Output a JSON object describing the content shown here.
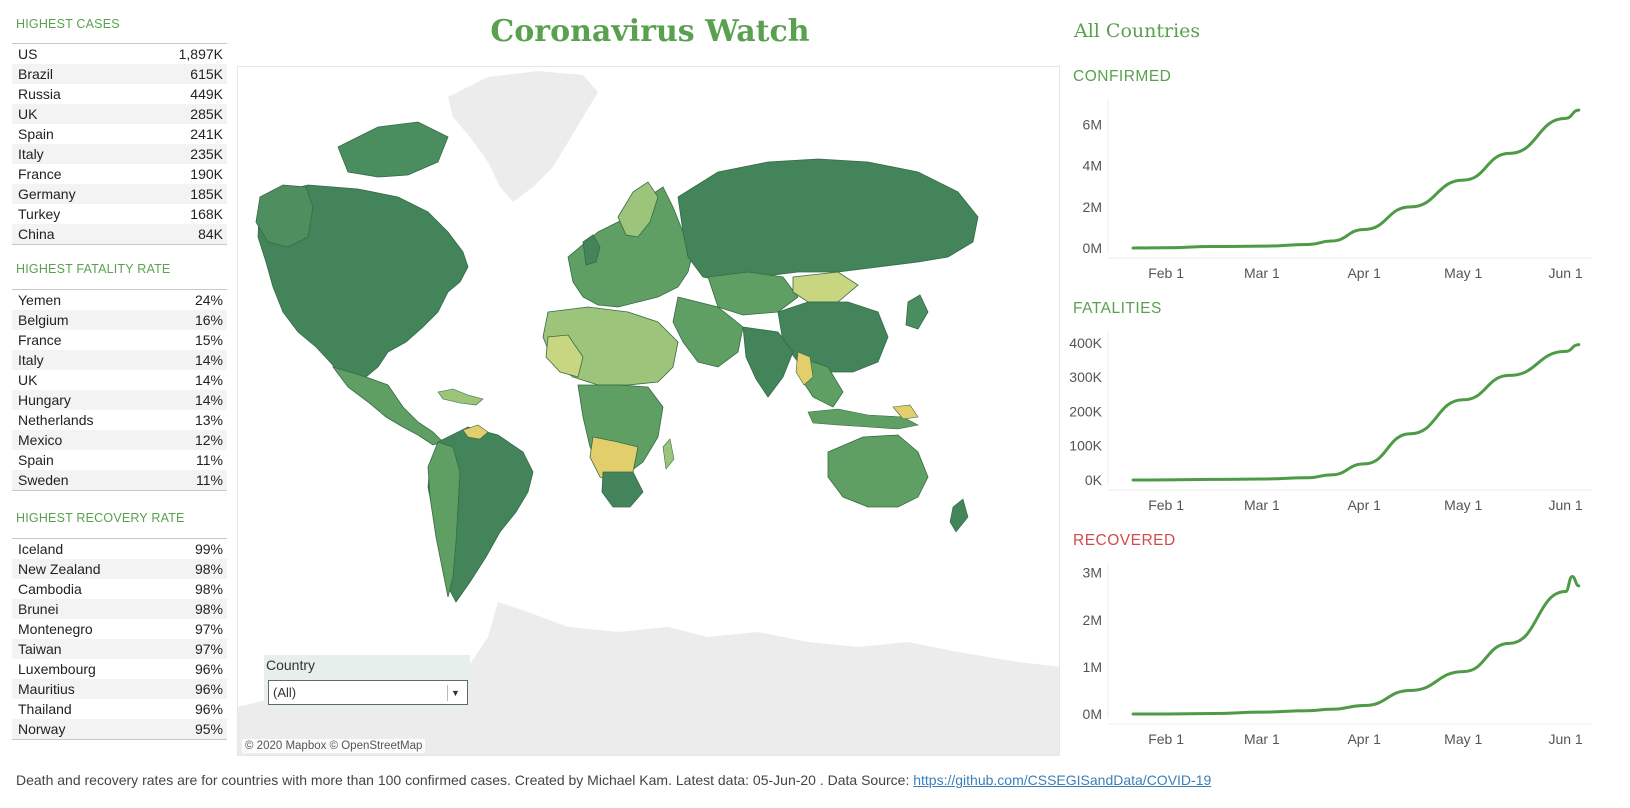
{
  "title": "Coronavirus Watch",
  "right_title": "All Countries",
  "highest_cases": {
    "header": "HIGHEST CASES",
    "rows": [
      {
        "name": "US",
        "value": "1,897K"
      },
      {
        "name": "Brazil",
        "value": "615K"
      },
      {
        "name": "Russia",
        "value": "449K"
      },
      {
        "name": "UK",
        "value": "285K"
      },
      {
        "name": "Spain",
        "value": "241K"
      },
      {
        "name": "Italy",
        "value": "235K"
      },
      {
        "name": "France",
        "value": "190K"
      },
      {
        "name": "Germany",
        "value": "185K"
      },
      {
        "name": "Turkey",
        "value": "168K"
      },
      {
        "name": "China",
        "value": "84K"
      }
    ]
  },
  "highest_fatality": {
    "header": "HIGHEST FATALITY RATE",
    "rows": [
      {
        "name": "Yemen",
        "value": "24%"
      },
      {
        "name": "Belgium",
        "value": "16%"
      },
      {
        "name": "France",
        "value": "15%"
      },
      {
        "name": "Italy",
        "value": "14%"
      },
      {
        "name": "UK",
        "value": "14%"
      },
      {
        "name": "Hungary",
        "value": "14%"
      },
      {
        "name": "Netherlands",
        "value": "13%"
      },
      {
        "name": "Mexico",
        "value": "12%"
      },
      {
        "name": "Spain",
        "value": "11%"
      },
      {
        "name": "Sweden",
        "value": "11%"
      }
    ]
  },
  "highest_recovery": {
    "header": "HIGHEST RECOVERY RATE",
    "rows": [
      {
        "name": "Iceland",
        "value": "99%"
      },
      {
        "name": "New Zealand",
        "value": "98%"
      },
      {
        "name": "Cambodia",
        "value": "98%"
      },
      {
        "name": "Brunei",
        "value": "98%"
      },
      {
        "name": "Montenegro",
        "value": "97%"
      },
      {
        "name": "Taiwan",
        "value": "97%"
      },
      {
        "name": "Luxembourg",
        "value": "96%"
      },
      {
        "name": "Mauritius",
        "value": "96%"
      },
      {
        "name": "Thailand",
        "value": "96%"
      },
      {
        "name": "Norway",
        "value": "95%"
      }
    ]
  },
  "map": {
    "attribution": "© 2020 Mapbox © OpenStreetMap",
    "filter_label": "Country",
    "filter_value": "(All)",
    "colors": {
      "dark": "#43845a",
      "mid": "#5f9f63",
      "light": "#9cc47a",
      "pale": "#c8d682",
      "yellow": "#e2cf6c",
      "land": "#ececec"
    }
  },
  "colors": {
    "accent": "#59a14f",
    "recovered_label": "#d14b4b",
    "line": "#4e9a47"
  },
  "charts": [
    {
      "label": "CONFIRMED",
      "label_color": "#59a14f",
      "chart_data": {
        "type": "line",
        "x": [
          "Jan 22",
          "Feb 1",
          "Feb 15",
          "Mar 1",
          "Mar 15",
          "Mar 22",
          "Apr 1",
          "Apr 15",
          "May 1",
          "May 15",
          "Jun 1",
          "Jun 5"
        ],
        "values": [
          0.0006,
          0.012,
          0.07,
          0.09,
          0.17,
          0.34,
          0.9,
          2.0,
          3.3,
          4.6,
          6.3,
          6.7
        ],
        "ylim": [
          0,
          7
        ],
        "y_ticks": [
          "0M",
          "2M",
          "4M",
          "6M"
        ],
        "y_tick_values": [
          0,
          2,
          4,
          6
        ],
        "x_ticks": [
          "Feb 1",
          "Mar 1",
          "Apr 1",
          "May 1",
          "Jun 1"
        ],
        "x_tick_dates": [
          "Feb 1",
          "Mar 1",
          "Apr 1",
          "May 1",
          "Jun 1"
        ]
      }
    },
    {
      "label": "FATALITIES",
      "label_color": "#59a14f",
      "chart_data": {
        "type": "line",
        "x": [
          "Jan 22",
          "Feb 1",
          "Feb 15",
          "Mar 1",
          "Mar 15",
          "Mar 22",
          "Apr 1",
          "Apr 15",
          "May 1",
          "May 15",
          "Jun 1",
          "Jun 5"
        ],
        "values": [
          0.02,
          0.26,
          1.7,
          3.0,
          6.5,
          15,
          47,
          135,
          234,
          305,
          375,
          395
        ],
        "ylim": [
          0,
          420
        ],
        "y_ticks": [
          "0K",
          "100K",
          "200K",
          "300K",
          "400K"
        ],
        "y_tick_values": [
          0,
          100,
          200,
          300,
          400
        ],
        "x_ticks": [
          "Feb 1",
          "Mar 1",
          "Apr 1",
          "May 1",
          "Jun 1"
        ],
        "x_tick_dates": [
          "Feb 1",
          "Mar 1",
          "Apr 1",
          "May 1",
          "Jun 1"
        ]
      }
    },
    {
      "label": "RECOVERED",
      "label_color": "#d14b4b",
      "chart_data": {
        "type": "line",
        "x": [
          "Jan 22",
          "Feb 1",
          "Feb 15",
          "Mar 1",
          "Mar 15",
          "Mar 22",
          "Apr 1",
          "Apr 15",
          "May 1",
          "May 15",
          "Jun 1",
          "Jun 3",
          "Jun 5"
        ],
        "values": [
          0.0,
          0.001,
          0.01,
          0.04,
          0.07,
          0.1,
          0.18,
          0.5,
          0.9,
          1.5,
          2.6,
          2.92,
          2.72
        ],
        "ylim": [
          0,
          3.1
        ],
        "y_ticks": [
          "0M",
          "1M",
          "2M",
          "3M"
        ],
        "y_tick_values": [
          0,
          1,
          2,
          3
        ],
        "x_ticks": [
          "Feb 1",
          "Mar 1",
          "Apr 1",
          "May 1",
          "Jun 1"
        ],
        "x_tick_dates": [
          "Feb 1",
          "Mar 1",
          "Apr 1",
          "May 1",
          "Jun 1"
        ]
      }
    }
  ],
  "footer": {
    "text": "Death and recovery rates are for countries with more than 100 confirmed cases. Created by Michael Kam. Latest data: 05-Jun-20 . Data Source: ",
    "link": "https://github.com/CSSEGISandData/COVID-19"
  }
}
